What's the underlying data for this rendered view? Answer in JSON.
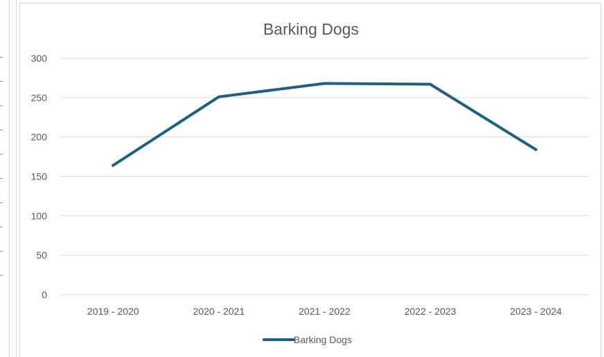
{
  "chart_data": {
    "type": "line",
    "title": "Barking Dogs",
    "xlabel": "",
    "ylabel": "",
    "categories": [
      "2019 - 2020",
      "2020 - 2021",
      "2021 - 2022",
      "2022 - 2023",
      "2023 - 2024"
    ],
    "series": [
      {
        "name": "Barking Dogs",
        "values": [
          164,
          251,
          268,
          267,
          184
        ],
        "color": "#1f6080"
      }
    ],
    "ylim": [
      0,
      300
    ],
    "yticks": [
      0,
      50,
      100,
      150,
      200,
      250,
      300
    ],
    "grid": true,
    "legend": "bottom",
    "gridColor": "#d9d9d9",
    "textColor": "#595959"
  }
}
